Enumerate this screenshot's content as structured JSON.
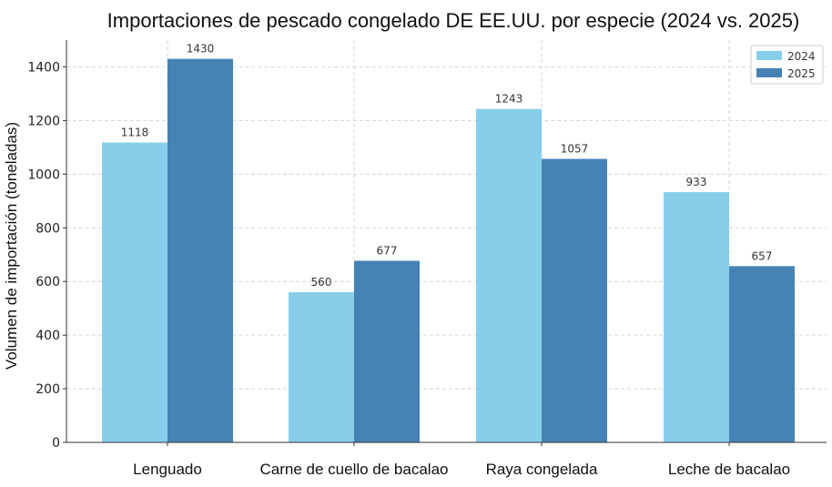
{
  "chart_data": {
    "type": "bar",
    "title": "Importaciones de pescado congelado DE EE.UU. por especie (2024 vs. 2025)",
    "xlabel": "",
    "ylabel": "Volumen de importación (toneladas)",
    "categories": [
      "Lenguado",
      "Carne de cuello de bacalao",
      "Raya congelada",
      "Leche de bacalao"
    ],
    "series": [
      {
        "name": "2024",
        "values": [
          1118,
          560,
          1243,
          933
        ],
        "color": "#87CEEB"
      },
      {
        "name": "2025",
        "values": [
          1430,
          677,
          1057,
          657
        ],
        "color": "#4682B4"
      }
    ],
    "ylim": [
      0,
      1500
    ],
    "yticks": [
      0,
      200,
      400,
      600,
      800,
      1000,
      1200,
      1400
    ],
    "grid": true,
    "legend_position": "top-right"
  }
}
